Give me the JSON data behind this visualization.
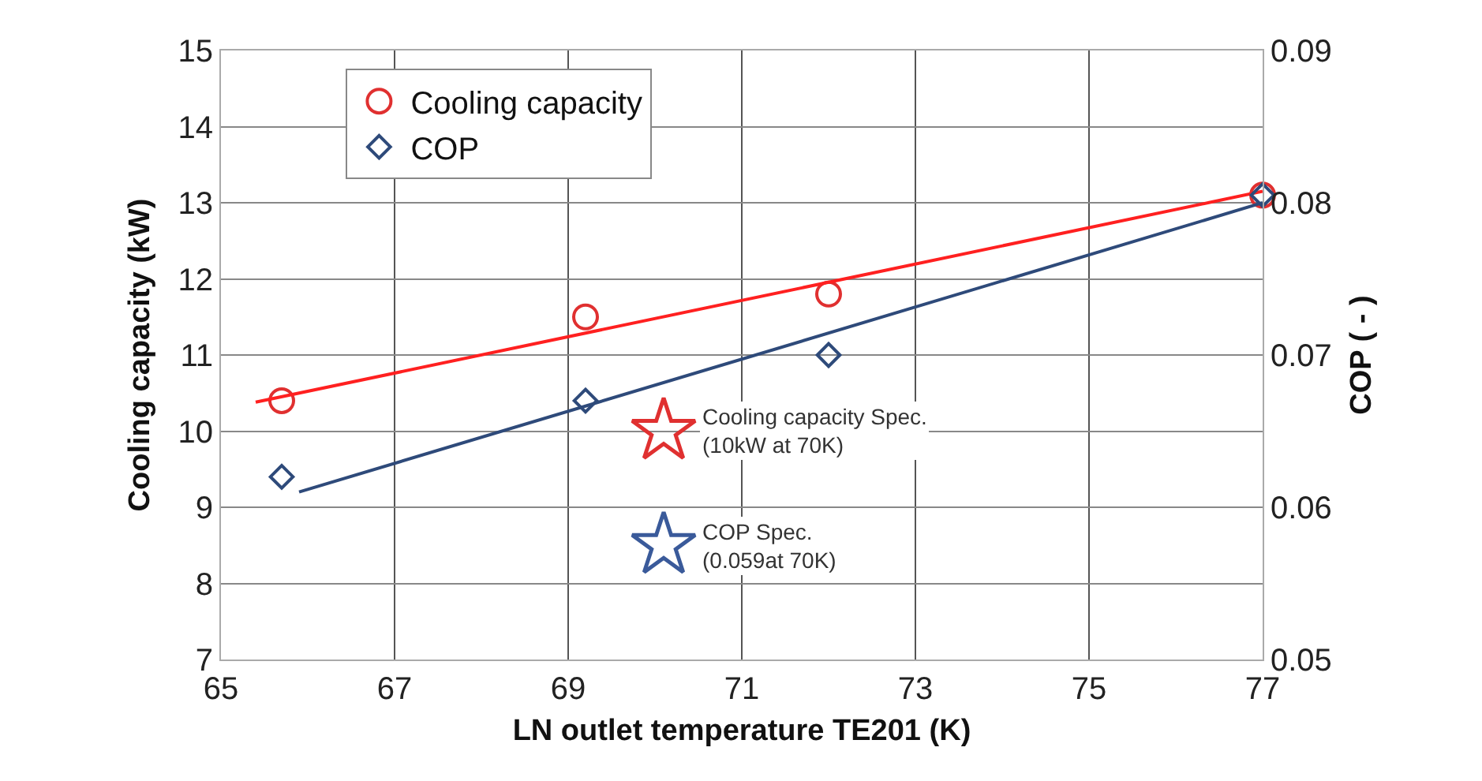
{
  "chart_data": {
    "type": "scatter",
    "xlabel": "LN outlet temperature TE201 (K)",
    "ylabel": "Cooling capacity (kW)",
    "y2label": "COP ( - )",
    "xlim": [
      65,
      77
    ],
    "xticks": [
      65,
      67,
      69,
      71,
      73,
      75,
      77
    ],
    "ylim": [
      7,
      15
    ],
    "yticks": [
      7,
      8,
      9,
      10,
      11,
      12,
      13,
      14,
      15
    ],
    "y2lim": [
      0.05,
      0.09
    ],
    "y2ticks": [
      0.05,
      0.06,
      0.07,
      0.08,
      0.09
    ],
    "grid": true,
    "legend": "top left",
    "series": [
      {
        "name": "Cooling capacity",
        "type": "scatter",
        "marker": "circle",
        "color": "#e03030",
        "x": [
          65.7,
          69.2,
          72,
          77
        ],
        "values": [
          10.4,
          11.5,
          11.8,
          13.1
        ]
      },
      {
        "name": "COP",
        "type": "scatter",
        "marker": "diamond",
        "color": "#2e4a7a",
        "axis": "y2",
        "x": [
          65.7,
          69.2,
          72,
          77
        ],
        "values": [
          0.062,
          0.067,
          0.07,
          0.0805
        ]
      },
      {
        "type": "line",
        "marker": "none",
        "color": "#ff2020",
        "x": [
          65.4,
          77
        ],
        "values": [
          10.38,
          13.15
        ]
      },
      {
        "type": "line",
        "marker": "none",
        "color": "#2e4a7a",
        "axis": "y2",
        "x": [
          65.9,
          77
        ],
        "values": [
          0.061,
          0.08
        ]
      },
      {
        "type": "scatter",
        "marker": "star",
        "color": "#e03030",
        "x": [
          70.1
        ],
        "values": [
          10
        ]
      },
      {
        "type": "scatter",
        "marker": "star",
        "color": "#3a5a9a",
        "axis": "y2",
        "x": [
          70.1
        ],
        "values": [
          0.0575
        ]
      }
    ],
    "annotations": [
      "Cooling capacity Spec.\n(10kW at 70K)",
      "COP Spec.\n(0.059at 70K)"
    ]
  }
}
